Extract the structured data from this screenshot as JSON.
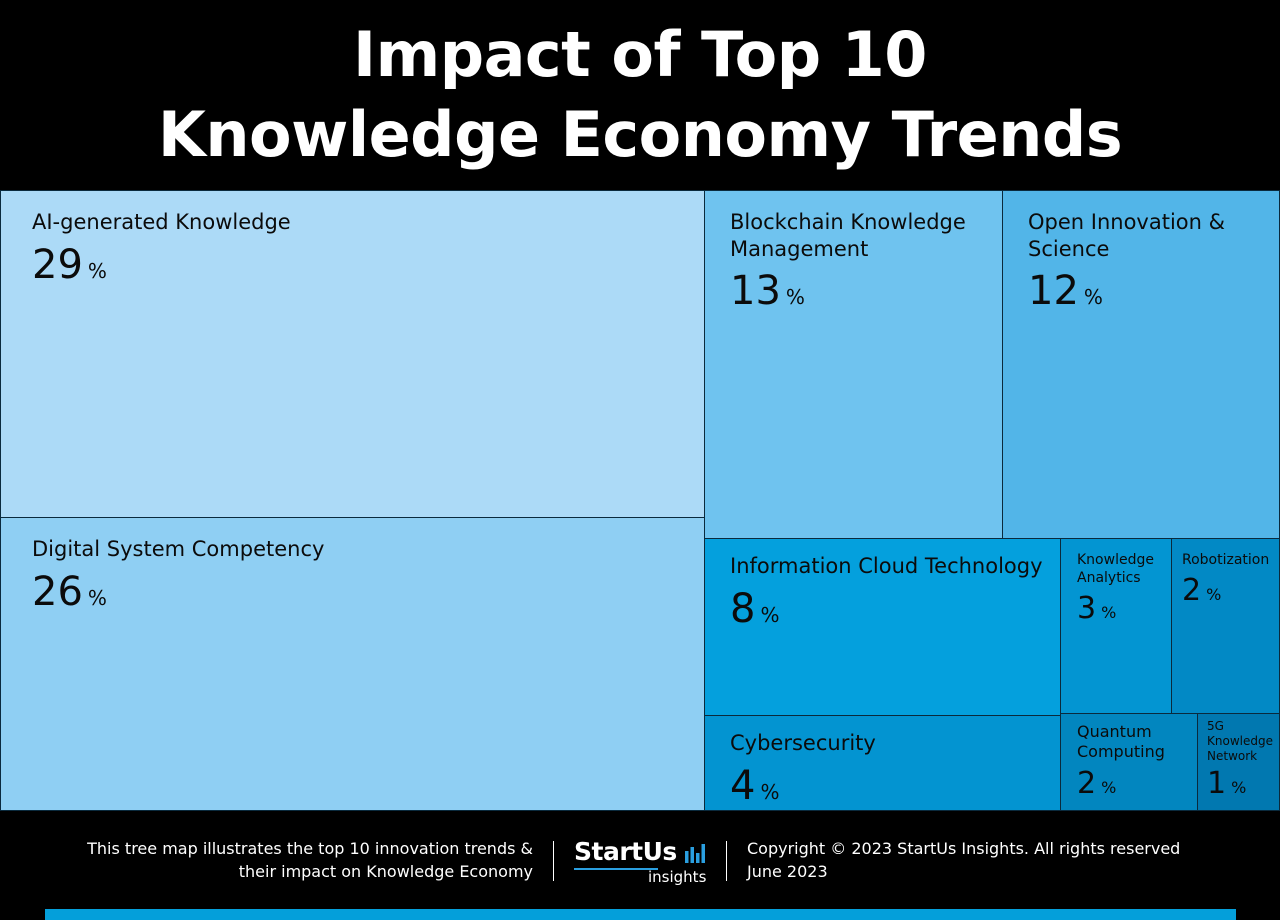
{
  "header": {
    "title_line1": "Impact of Top 10",
    "title_line2": "Knowledge Economy Trends"
  },
  "chart_data": {
    "type": "treemap",
    "title": "Impact of Top 10 Knowledge Economy Trends",
    "unit": "%",
    "items": [
      {
        "name": "AI-generated Knowledge",
        "value": 29,
        "color": "#acdaf7"
      },
      {
        "name": "Digital System Competency",
        "value": 26,
        "color": "#8fcff3"
      },
      {
        "name": "Blockchain Knowledge Management",
        "value": 13,
        "color": "#6fc3ef"
      },
      {
        "name": "Open Innovation & Science",
        "value": 12,
        "color": "#52b5e8"
      },
      {
        "name": "Information Cloud Technology",
        "value": 8,
        "color": "#04a0dd"
      },
      {
        "name": "Cybersecurity",
        "value": 4,
        "color": "#0394d1"
      },
      {
        "name": "Knowledge Analytics",
        "value": 3,
        "color": "#0395d2"
      },
      {
        "name": "Robotization",
        "value": 2,
        "color": "#0289c5"
      },
      {
        "name": "Quantum Computing",
        "value": 2,
        "color": "#0286bf"
      },
      {
        "name": "5G Knowledge Network",
        "value": 1,
        "color": "#0178b0"
      }
    ]
  },
  "footer": {
    "description_line1": "This tree map illustrates the top 10 innovation trends &",
    "description_line2": "their impact on Knowledge Economy",
    "logo_brand": "StartUs",
    "logo_sub": "insights",
    "copyright": "Copyright © 2023 StartUs Insights. All rights reserved",
    "date": "June 2023",
    "bar_color": "#049fda"
  }
}
